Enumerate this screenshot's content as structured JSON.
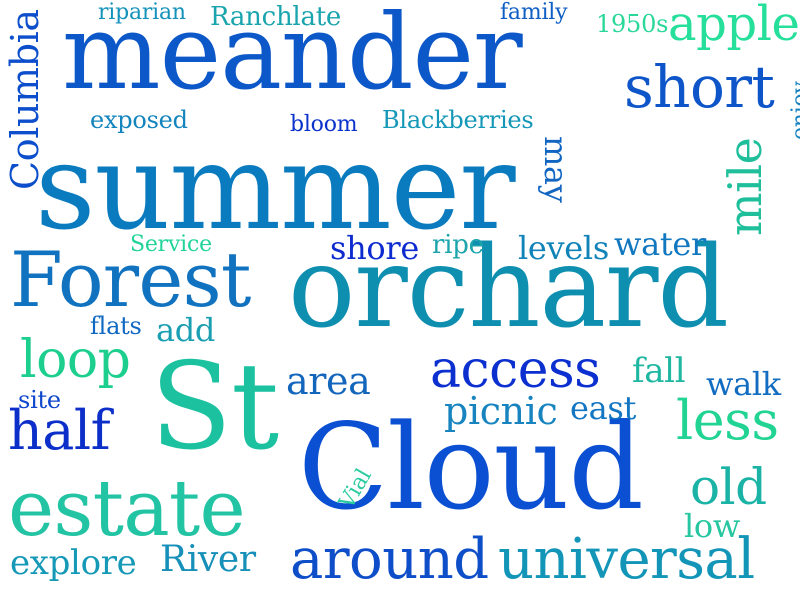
{
  "words": [
    {
      "text": "summer",
      "color": "#0a7bbf"
    },
    {
      "text": "orchard",
      "color": "#0f8fb0"
    },
    {
      "text": "meander",
      "color": "#0d58c8"
    },
    {
      "text": "Cloud",
      "color": "#0b4fd2"
    },
    {
      "text": "St",
      "color": "#1cc2a0"
    },
    {
      "text": "Forest",
      "color": "#1173c0"
    },
    {
      "text": "estate",
      "color": "#23c4a4"
    },
    {
      "text": "short",
      "color": "#0d55c8"
    },
    {
      "text": "around",
      "color": "#0e4ec8"
    },
    {
      "text": "universal",
      "color": "#1395b8"
    },
    {
      "text": "access",
      "color": "#0c2fd0"
    },
    {
      "text": "apple",
      "color": "#26df9a"
    },
    {
      "text": "loop",
      "color": "#1ccf8e"
    },
    {
      "text": "half",
      "color": "#0c2fca"
    },
    {
      "text": "less",
      "color": "#22d493"
    },
    {
      "text": "old",
      "color": "#1ab3a6"
    },
    {
      "text": "picnic",
      "color": "#1784c0"
    },
    {
      "text": "area",
      "color": "#1466bd"
    },
    {
      "text": "walk",
      "color": "#126cc0"
    },
    {
      "text": "fall",
      "color": "#1fb7a2"
    },
    {
      "text": "east",
      "color": "#1376c2"
    },
    {
      "text": "water",
      "color": "#1178c0"
    },
    {
      "text": "levels",
      "color": "#1083b9"
    },
    {
      "text": "shore",
      "color": "#0d2bcf"
    },
    {
      "text": "ripe",
      "color": "#1ca5ad"
    },
    {
      "text": "add",
      "color": "#1a9fb2"
    },
    {
      "text": "flats",
      "color": "#0f68c2"
    },
    {
      "text": "site",
      "color": "#0d45cc"
    },
    {
      "text": "explore",
      "color": "#1599b7"
    },
    {
      "text": "River",
      "color": "#1790b9"
    },
    {
      "text": "low",
      "color": "#26c7a0"
    },
    {
      "text": "exposed",
      "color": "#1384bd"
    },
    {
      "text": "bloom",
      "color": "#0c32cc"
    },
    {
      "text": "Blackberries",
      "color": "#1598b7"
    },
    {
      "text": "riparian",
      "color": "#1592ba"
    },
    {
      "text": "Ranchlate",
      "color": "#1aa5ae"
    },
    {
      "text": "family",
      "color": "#0f5ec4"
    },
    {
      "text": "1950s",
      "color": "#2ad89a"
    },
    {
      "text": "Service",
      "color": "#22d49a"
    },
    {
      "text": "Columbia",
      "color": "#0c4ecb"
    },
    {
      "text": "may",
      "color": "#1266c2"
    },
    {
      "text": "mile",
      "color": "#1fbf9c"
    },
    {
      "text": "enjoy",
      "color": "#1580bf"
    },
    {
      "text": "Vial",
      "color": "#2ccca0"
    }
  ]
}
